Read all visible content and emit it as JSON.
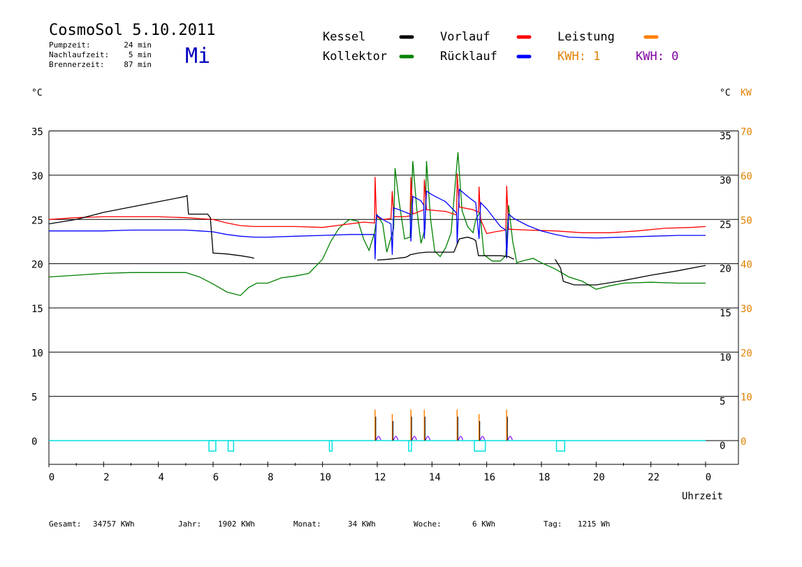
{
  "header": {
    "title": "CosmoSol 5.10.2011",
    "weekday": "Mi",
    "stats": [
      {
        "label": "Pumpzeit:",
        "value": "24 min"
      },
      {
        "label": "Nachlaufzeit:",
        "value": "5 min"
      },
      {
        "label": "Brennerzeit:",
        "value": "87 min"
      }
    ]
  },
  "legend": {
    "items": [
      {
        "label": "Kessel",
        "color": "#000000"
      },
      {
        "label": "Vorlauf",
        "color": "#ff0000"
      },
      {
        "label": "Leistung",
        "color": "#ff8000"
      },
      {
        "label": "Kollektor",
        "color": "#008000"
      },
      {
        "label": "Rücklauf",
        "color": "#0000ff"
      }
    ],
    "kwh_orange": "KWH: 1",
    "kwh_purple": "KWH: 0"
  },
  "axes": {
    "left_unit": "°C",
    "right_unit": "°C",
    "right_power_unit": "KW",
    "xlabel": "Uhrzeit"
  },
  "footer": [
    {
      "label": "Gesamt:",
      "value": "34757 KWh"
    },
    {
      "label": "Jahr:",
      "value": "1902 KWh"
    },
    {
      "label": "Monat:",
      "value": "34 KWh"
    },
    {
      "label": "Woche:",
      "value": "6 KWh"
    },
    {
      "label": "Tag:",
      "value": "1215 Wh"
    }
  ],
  "colors": {
    "kessel": "#000000",
    "vorlauf": "#ff0000",
    "ruecklauf": "#0000ff",
    "kollektor": "#008000",
    "leistung": "#ff8000",
    "kwh": "#8000ff",
    "pump": "#00e0e0",
    "axis_orange": "#e08000",
    "weekday": "#0000c0"
  },
  "chart_data": {
    "type": "line",
    "xlabel": "Uhrzeit",
    "ylabel": "°C",
    "xlim": [
      0,
      24
    ],
    "ylim": [
      -2.5,
      35
    ],
    "y_right_kw_ticks": [
      0,
      10,
      20,
      30,
      40,
      50,
      60,
      70
    ],
    "x_ticks": [
      "0",
      "2",
      "4",
      "6",
      "8",
      "10",
      "12",
      "14",
      "16",
      "18",
      "20",
      "22",
      "0"
    ],
    "y_ticks": [
      0,
      5,
      10,
      15,
      20,
      25,
      30,
      35
    ],
    "grid": "horizontal",
    "series": [
      {
        "name": "Kessel",
        "points": [
          [
            0,
            24.5
          ],
          [
            1,
            25
          ],
          [
            2,
            25.8
          ],
          [
            3,
            26.4
          ],
          [
            4,
            27
          ],
          [
            5,
            27.6
          ],
          [
            5.05,
            27.7
          ],
          [
            5.1,
            25.6
          ],
          [
            5.8,
            25.6
          ],
          [
            5.9,
            25.2
          ],
          [
            6.0,
            21.2
          ],
          [
            6.5,
            21.1
          ],
          [
            7.0,
            20.9
          ],
          [
            7.4,
            20.7
          ],
          [
            7.5,
            20.6
          ]
        ]
      },
      {
        "name": "Kessel",
        "points": [
          [
            12.0,
            20.4
          ],
          [
            12.4,
            20.5
          ],
          [
            12.7,
            20.6
          ],
          [
            13.0,
            20.7
          ],
          [
            13.1,
            20.8
          ],
          [
            13.2,
            21.0
          ],
          [
            13.5,
            21.2
          ],
          [
            13.8,
            21.3
          ],
          [
            14.0,
            21.3
          ],
          [
            14.5,
            21.3
          ],
          [
            14.8,
            21.3
          ],
          [
            15.0,
            22.8
          ],
          [
            15.3,
            23
          ],
          [
            15.5,
            22.8
          ],
          [
            15.6,
            22.6
          ],
          [
            15.7,
            20.9
          ],
          [
            16.0,
            20.9
          ],
          [
            16.5,
            20.9
          ],
          [
            16.8,
            20.8
          ],
          [
            17.0,
            20.5
          ]
        ]
      },
      {
        "name": "Kessel",
        "points": [
          [
            18.5,
            20.5
          ],
          [
            18.7,
            19.5
          ],
          [
            18.8,
            18
          ],
          [
            19.2,
            17.6
          ],
          [
            20,
            17.6
          ],
          [
            21,
            18.1
          ],
          [
            22,
            18.7
          ],
          [
            23,
            19.2
          ],
          [
            24,
            19.8
          ]
        ]
      },
      {
        "name": "Vorlauf",
        "points": [
          [
            0,
            25
          ],
          [
            1,
            25.2
          ],
          [
            2,
            25.3
          ],
          [
            3,
            25.3
          ],
          [
            4,
            25.3
          ],
          [
            5,
            25.2
          ],
          [
            5.5,
            25.1
          ],
          [
            6,
            25
          ],
          [
            6.5,
            24.6
          ],
          [
            7,
            24.3
          ],
          [
            7.5,
            24.2
          ],
          [
            8,
            24.2
          ],
          [
            9,
            24.2
          ],
          [
            10,
            24.1
          ],
          [
            11,
            24.5
          ],
          [
            11.5,
            24.7
          ],
          [
            11.9,
            24.6
          ],
          [
            11.92,
            29.8
          ],
          [
            11.97,
            25.3
          ],
          [
            12.2,
            25.0
          ],
          [
            12.5,
            25.1
          ],
          [
            12.55,
            28.2
          ],
          [
            12.6,
            25.3
          ],
          [
            13.0,
            25.3
          ],
          [
            13.2,
            25.4
          ],
          [
            13.23,
            29.8
          ],
          [
            13.3,
            25.6
          ],
          [
            13.7,
            26.1
          ],
          [
            13.72,
            29.5
          ],
          [
            13.8,
            26.1
          ],
          [
            14.5,
            25.9
          ],
          [
            14.9,
            25.5
          ],
          [
            14.92,
            30.2
          ],
          [
            15.0,
            26.4
          ],
          [
            15.5,
            26.1
          ],
          [
            15.7,
            25.8
          ],
          [
            15.72,
            28.7
          ],
          [
            15.78,
            25.0
          ],
          [
            16.0,
            23.4
          ],
          [
            16.3,
            23.6
          ],
          [
            16.7,
            23.8
          ],
          [
            16.73,
            28.8
          ],
          [
            16.8,
            23.9
          ],
          [
            17.5,
            23.8
          ],
          [
            18.5,
            23.7
          ],
          [
            19.5,
            23.5
          ],
          [
            20.5,
            23.5
          ],
          [
            21.5,
            23.7
          ],
          [
            22.5,
            24
          ],
          [
            23.5,
            24.1
          ],
          [
            24,
            24.2
          ]
        ]
      },
      {
        "name": "Rücklauf",
        "points": [
          [
            0,
            23.7
          ],
          [
            1,
            23.7
          ],
          [
            2,
            23.7
          ],
          [
            3,
            23.8
          ],
          [
            4,
            23.8
          ],
          [
            5,
            23.8
          ],
          [
            5.5,
            23.7
          ],
          [
            6,
            23.6
          ],
          [
            6.5,
            23.3
          ],
          [
            7,
            23.1
          ],
          [
            7.5,
            23
          ],
          [
            8,
            23
          ],
          [
            9,
            23.1
          ],
          [
            10,
            23.2
          ],
          [
            11,
            23.3
          ],
          [
            11.9,
            23.3
          ],
          [
            11.92,
            20.5
          ],
          [
            11.97,
            25.5
          ],
          [
            12.2,
            25
          ],
          [
            12.5,
            24.5
          ],
          [
            12.55,
            21
          ],
          [
            12.6,
            26.3
          ],
          [
            12.8,
            26.1
          ],
          [
            13.2,
            25.6
          ],
          [
            13.23,
            22.5
          ],
          [
            13.3,
            27.6
          ],
          [
            13.6,
            27.1
          ],
          [
            13.7,
            26.6
          ],
          [
            13.72,
            22.8
          ],
          [
            13.8,
            28.2
          ],
          [
            14.0,
            27.8
          ],
          [
            14.5,
            27
          ],
          [
            14.9,
            25.7
          ],
          [
            14.92,
            22.2
          ],
          [
            15.0,
            28.4
          ],
          [
            15.3,
            27.6
          ],
          [
            15.6,
            26.9
          ],
          [
            15.72,
            22.8
          ],
          [
            15.78,
            26.9
          ],
          [
            16,
            26.2
          ],
          [
            16.5,
            24.2
          ],
          [
            16.7,
            23.8
          ],
          [
            16.73,
            20.6
          ],
          [
            16.8,
            25.6
          ],
          [
            17,
            25.1
          ],
          [
            17.5,
            24.3
          ],
          [
            18,
            23.7
          ],
          [
            18.5,
            23.3
          ],
          [
            19,
            23.0
          ],
          [
            20,
            22.9
          ],
          [
            21,
            23.0
          ],
          [
            22,
            23.1
          ],
          [
            23,
            23.2
          ],
          [
            24,
            23.2
          ]
        ]
      },
      {
        "name": "Kollektor",
        "points": [
          [
            0,
            18.5
          ],
          [
            1,
            18.7
          ],
          [
            2,
            18.9
          ],
          [
            3,
            19
          ],
          [
            4,
            19
          ],
          [
            5,
            19
          ],
          [
            5.5,
            18.5
          ],
          [
            6,
            17.7
          ],
          [
            6.5,
            16.8
          ],
          [
            7,
            16.4
          ],
          [
            7.3,
            17.3
          ],
          [
            7.6,
            17.8
          ],
          [
            8,
            17.8
          ],
          [
            8.5,
            18.4
          ],
          [
            9,
            18.6
          ],
          [
            9.5,
            18.9
          ],
          [
            10,
            20.5
          ],
          [
            10.3,
            22.5
          ],
          [
            10.6,
            24
          ],
          [
            10.9,
            24.8
          ],
          [
            11,
            25
          ],
          [
            11.3,
            24.8
          ],
          [
            11.5,
            22.8
          ],
          [
            11.7,
            21.5
          ],
          [
            11.9,
            23.5
          ],
          [
            12.0,
            25.5
          ],
          [
            12.2,
            24.5
          ],
          [
            12.35,
            21.3
          ],
          [
            12.6,
            24
          ],
          [
            12.65,
            30.8
          ],
          [
            12.8,
            27
          ],
          [
            13.0,
            22.8
          ],
          [
            13.2,
            23
          ],
          [
            13.3,
            31.6
          ],
          [
            13.45,
            26
          ],
          [
            13.6,
            22.3
          ],
          [
            13.75,
            24
          ],
          [
            13.8,
            31.6
          ],
          [
            13.95,
            25
          ],
          [
            14.1,
            21.4
          ],
          [
            14.3,
            20.8
          ],
          [
            14.5,
            21.8
          ],
          [
            14.7,
            23.5
          ],
          [
            14.95,
            32.6
          ],
          [
            15.1,
            26
          ],
          [
            15.3,
            24.2
          ],
          [
            15.5,
            23.5
          ],
          [
            15.6,
            25
          ],
          [
            15.75,
            25.8
          ],
          [
            15.9,
            21
          ],
          [
            16.2,
            20.3
          ],
          [
            16.5,
            20.3
          ],
          [
            16.7,
            20.9
          ],
          [
            16.8,
            26.6
          ],
          [
            16.95,
            22.5
          ],
          [
            17.1,
            20.1
          ],
          [
            17.3,
            20.3
          ],
          [
            17.7,
            20.6
          ],
          [
            18,
            20.1
          ],
          [
            18.5,
            19.4
          ],
          [
            19,
            18.5
          ],
          [
            19.5,
            18
          ],
          [
            20,
            17.1
          ],
          [
            20.5,
            17.5
          ],
          [
            21,
            17.8
          ],
          [
            22,
            17.9
          ],
          [
            23,
            17.8
          ],
          [
            24,
            17.8
          ]
        ]
      }
    ],
    "leistung_spikes_kw": [
      [
        11.92,
        7
      ],
      [
        12.55,
        6
      ],
      [
        13.23,
        7
      ],
      [
        13.72,
        7
      ],
      [
        14.92,
        7
      ],
      [
        15.72,
        6
      ],
      [
        16.73,
        7
      ]
    ],
    "pump_markers": [
      [
        5.85,
        6.1
      ],
      [
        6.55,
        6.75
      ],
      [
        10.25,
        10.35
      ],
      [
        13.15,
        13.25
      ],
      [
        15.55,
        15.95
      ],
      [
        18.55,
        18.85
      ]
    ]
  }
}
